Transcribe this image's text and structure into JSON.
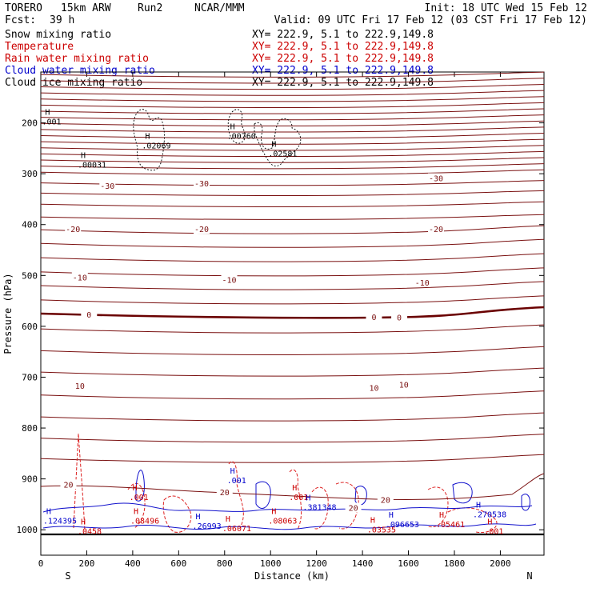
{
  "header": {
    "model": "TORERO",
    "resolution": "15km ARW",
    "run": "Run2",
    "org": "NCAR/MMM",
    "init": "Init: 18 UTC Wed 15 Feb 12",
    "fcst_label": "Fcst:",
    "fcst_value": "39 h",
    "valid": "Valid: 09 UTC Fri 17 Feb 12 (03 CST Fri 17 Feb 12)"
  },
  "legend": [
    {
      "name": "Snow mixing ratio",
      "xy": "XY= 222.9,  5.1 to 222.9,149.8",
      "color": "#000000"
    },
    {
      "name": "Temperature",
      "xy": "XY= 222.9,  5.1 to 222.9,149.8",
      "color": "#cc0000"
    },
    {
      "name": "Rain water mixing ratio",
      "xy": "XY= 222.9,  5.1 to 222.9,149.8",
      "color": "#cc0000"
    },
    {
      "name": "Cloud water mixing ratio",
      "xy": "XY= 222.9,  5.1 to 222.9,149.8",
      "color": "#0000cc"
    },
    {
      "name": "Cloud ice mixing ratio",
      "xy": "XY= 222.9,  5.1 to 222.9,149.8",
      "color": "#000000"
    }
  ],
  "chart_data": {
    "type": "line",
    "xlabel": "Distance (km)",
    "ylabel": "Pressure (hPa)",
    "xlim": [
      0,
      2190
    ],
    "ylim": [
      1050,
      100
    ],
    "x_ticks": [
      "0",
      "200",
      "400",
      "600",
      "800",
      "1000",
      "1200",
      "1400",
      "1600",
      "1800",
      "2000"
    ],
    "y_ticks": [
      "200",
      "300",
      "400",
      "500",
      "600",
      "700",
      "800",
      "900",
      "1000"
    ],
    "endpoints": {
      "left": "S",
      "right": "N"
    },
    "temperature_contour_labels": [
      {
        "text": "-30",
        "x": 290,
        "p": 325
      },
      {
        "text": "-30",
        "x": 700,
        "p": 320
      },
      {
        "text": "-30",
        "x": 1720,
        "p": 310
      },
      {
        "text": "-20",
        "x": 140,
        "p": 410
      },
      {
        "text": "-20",
        "x": 700,
        "p": 410
      },
      {
        "text": "-20",
        "x": 1720,
        "p": 410
      },
      {
        "text": "-10",
        "x": 170,
        "p": 505
      },
      {
        "text": "-10",
        "x": 820,
        "p": 510
      },
      {
        "text": "-10",
        "x": 1660,
        "p": 515
      },
      {
        "text": "0",
        "x": 210,
        "p": 578
      },
      {
        "text": "0",
        "x": 1450,
        "p": 583
      },
      {
        "text": "0",
        "x": 1560,
        "p": 584
      },
      {
        "text": "10",
        "x": 170,
        "p": 718
      },
      {
        "text": "10",
        "x": 1450,
        "p": 722
      },
      {
        "text": "10",
        "x": 1580,
        "p": 716
      },
      {
        "text": "20",
        "x": 120,
        "p": 912
      },
      {
        "text": "20",
        "x": 800,
        "p": 927
      },
      {
        "text": "20",
        "x": 1360,
        "p": 958
      },
      {
        "text": "20",
        "x": 1500,
        "p": 942
      }
    ],
    "high_labels": [
      {
        "text": ".001",
        "x": 5,
        "p": 200,
        "color": "#000000"
      },
      {
        "text": ".00031",
        "x": 160,
        "p": 285,
        "color": "#000000"
      },
      {
        "text": ".02069",
        "x": 440,
        "p": 247,
        "color": "#000000"
      },
      {
        "text": ".00760",
        "x": 810,
        "p": 228,
        "color": "#000000"
      },
      {
        "text": ".02581",
        "x": 990,
        "p": 263,
        "color": "#000000"
      },
      {
        "text": ".001",
        "x": 385,
        "p": 938,
        "color": "#cc0000"
      },
      {
        "text": ".001",
        "x": 810,
        "p": 905,
        "color": "#0000cc"
      },
      {
        "text": ".001",
        "x": 1080,
        "p": 938,
        "color": "#cc0000"
      },
      {
        "text": ".124395",
        "x": 10,
        "p": 985,
        "color": "#0000cc"
      },
      {
        "text": ".0458",
        "x": 160,
        "p": 1005,
        "color": "#cc0000"
      },
      {
        "text": ".08496",
        "x": 390,
        "p": 985,
        "color": "#cc0000"
      },
      {
        "text": ".26993",
        "x": 660,
        "p": 995,
        "color": "#0000cc"
      },
      {
        "text": ".06071",
        "x": 790,
        "p": 1000,
        "color": "#cc0000"
      },
      {
        "text": ".08063",
        "x": 990,
        "p": 985,
        "color": "#cc0000"
      },
      {
        "text": ".381348",
        "x": 1140,
        "p": 958,
        "color": "#0000cc"
      },
      {
        "text": ".03535",
        "x": 1420,
        "p": 1002,
        "color": "#cc0000"
      },
      {
        "text": ".096653",
        "x": 1500,
        "p": 992,
        "color": "#0000cc"
      },
      {
        "text": ".05461",
        "x": 1720,
        "p": 992,
        "color": "#cc0000"
      },
      {
        "text": ".270538",
        "x": 1880,
        "p": 972,
        "color": "#0000cc"
      },
      {
        "text": ".001",
        "x": 1930,
        "p": 1005,
        "color": "#cc0000"
      }
    ],
    "colors": {
      "temperature": "#7a1010",
      "zero_isotherm": "#6a0000",
      "rain": "#dd2222",
      "cloud_water": "#1111cc",
      "ice": "#000000"
    }
  }
}
